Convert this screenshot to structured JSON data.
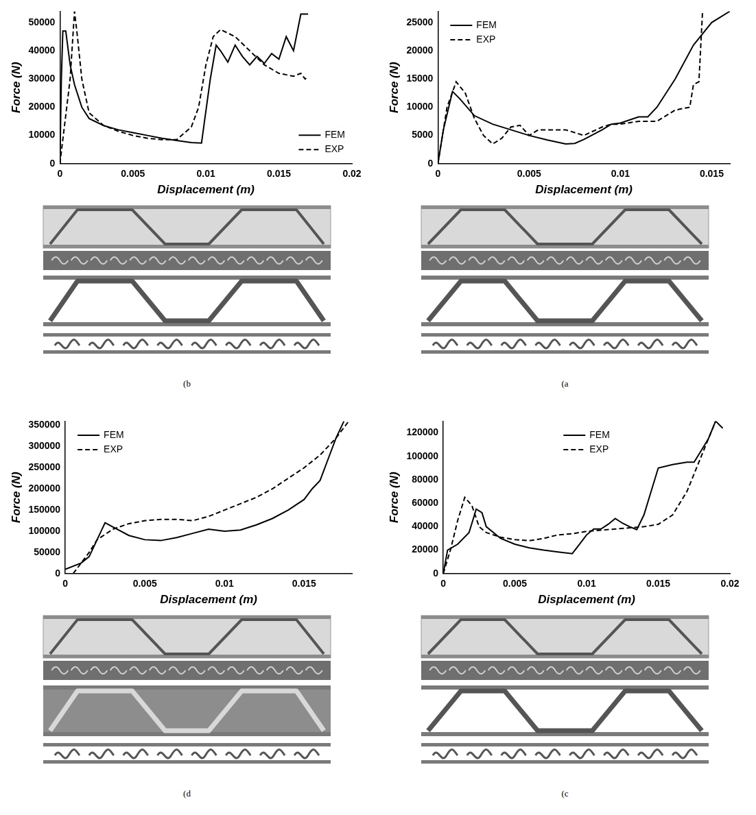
{
  "chart_data": [
    {
      "type": "line",
      "label": "(b",
      "x_label": "Displacement (m)",
      "y_label": "Force (N)",
      "xlim": [
        0,
        0.02
      ],
      "xticks": [
        0,
        0.005,
        0.01,
        0.015,
        0.02
      ],
      "ylim": [
        0,
        54000
      ],
      "yticks": [
        0,
        10000,
        20000,
        30000,
        40000,
        50000
      ],
      "grid": false,
      "legend": "lower right",
      "series": [
        {
          "name": "FEM",
          "color": "#000000",
          "line_style": "solid",
          "x": [
            0,
            0.0001,
            0.0002,
            0.0004,
            0.0007,
            0.001,
            0.0015,
            0.002,
            0.003,
            0.004,
            0.005,
            0.006,
            0.007,
            0.008,
            0.009,
            0.0097,
            0.0099,
            0.0103,
            0.0107,
            0.011,
            0.0115,
            0.012,
            0.0125,
            0.013,
            0.0135,
            0.014,
            0.0145,
            0.015,
            0.0155,
            0.016,
            0.0165,
            0.017
          ],
          "values": [
            0,
            30000,
            47000,
            47000,
            35000,
            28000,
            20000,
            16000,
            13500,
            12000,
            11000,
            10000,
            9000,
            8200,
            7500,
            7300,
            15000,
            30000,
            42000,
            40000,
            36000,
            42000,
            38000,
            35000,
            38000,
            35500,
            39000,
            37000,
            45000,
            40000,
            53000,
            53000
          ]
        },
        {
          "name": "EXP",
          "color": "#000000",
          "line_style": "dashed",
          "x": [
            0,
            0.0007,
            0.001,
            0.0012,
            0.0015,
            0.002,
            0.003,
            0.004,
            0.005,
            0.006,
            0.007,
            0.008,
            0.009,
            0.0095,
            0.01,
            0.0105,
            0.011,
            0.012,
            0.013,
            0.014,
            0.015,
            0.016,
            0.0165,
            0.0168,
            0.017
          ],
          "values": [
            0,
            30000,
            54000,
            45000,
            30000,
            18000,
            13500,
            11500,
            10000,
            9000,
            8500,
            8500,
            13000,
            20000,
            35000,
            45000,
            47500,
            45000,
            40000,
            35000,
            32000,
            31000,
            32000,
            30000,
            31000
          ]
        }
      ]
    },
    {
      "type": "line",
      "label": "(a",
      "x_label": "Displacement (m)",
      "y_label": "Force (N)",
      "xlim": [
        0,
        0.016
      ],
      "xticks": [
        0,
        0.005,
        0.01,
        0.015
      ],
      "ylim": [
        0,
        27000
      ],
      "yticks": [
        0,
        5000,
        10000,
        15000,
        20000,
        25000
      ],
      "grid": false,
      "legend": "upper left",
      "series": [
        {
          "name": "FEM",
          "color": "#000000",
          "line_style": "solid",
          "x": [
            0,
            0.0003,
            0.0008,
            0.0012,
            0.002,
            0.003,
            0.004,
            0.005,
            0.006,
            0.007,
            0.0075,
            0.008,
            0.009,
            0.0095,
            0.01,
            0.011,
            0.0115,
            0.012,
            0.013,
            0.014,
            0.015,
            0.016
          ],
          "values": [
            0,
            6000,
            12800,
            11500,
            8500,
            7000,
            6000,
            5000,
            4200,
            3500,
            3600,
            4300,
            6000,
            7000,
            7200,
            8300,
            8300,
            10000,
            15000,
            21000,
            25000,
            27000
          ]
        },
        {
          "name": "EXP",
          "color": "#000000",
          "line_style": "dashed",
          "x": [
            0,
            0.0005,
            0.001,
            0.0015,
            0.002,
            0.0025,
            0.003,
            0.0035,
            0.004,
            0.0045,
            0.005,
            0.0055,
            0.007,
            0.0075,
            0.008,
            0.009,
            0.0095,
            0.01,
            0.011,
            0.012,
            0.013,
            0.0138,
            0.014,
            0.0143,
            0.0145
          ],
          "values": [
            0,
            10000,
            14500,
            12500,
            8000,
            5000,
            3500,
            4500,
            6500,
            6800,
            5000,
            6000,
            6000,
            5500,
            5000,
            6500,
            7000,
            7000,
            7500,
            7500,
            9500,
            10000,
            14000,
            14500,
            27000
          ]
        }
      ]
    },
    {
      "type": "line",
      "label": "(d",
      "x_label": "Displacement (m)",
      "y_label": "Force (N)",
      "xlim": [
        0,
        0.018
      ],
      "xticks": [
        0,
        0.005,
        0.01,
        0.015
      ],
      "ylim": [
        0,
        360000
      ],
      "yticks": [
        0,
        50000,
        100000,
        150000,
        200000,
        250000,
        300000,
        350000
      ],
      "grid": false,
      "legend": "upper left",
      "series": [
        {
          "name": "FEM",
          "color": "#000000",
          "line_style": "solid",
          "x": [
            0,
            0.001,
            0.0015,
            0.002,
            0.0025,
            0.003,
            0.004,
            0.005,
            0.006,
            0.007,
            0.008,
            0.009,
            0.01,
            0.011,
            0.012,
            0.013,
            0.014,
            0.015,
            0.0155,
            0.016,
            0.0165,
            0.017,
            0.0175
          ],
          "values": [
            10000,
            25000,
            40000,
            80000,
            120000,
            110000,
            90000,
            80000,
            78000,
            85000,
            95000,
            105000,
            100000,
            103000,
            115000,
            130000,
            150000,
            175000,
            200000,
            220000,
            270000,
            320000,
            360000
          ]
        },
        {
          "name": "EXP",
          "color": "#000000",
          "line_style": "dashed",
          "x": [
            0.0005,
            0.0015,
            0.002,
            0.003,
            0.004,
            0.005,
            0.006,
            0.007,
            0.008,
            0.009,
            0.01,
            0.011,
            0.012,
            0.013,
            0.014,
            0.015,
            0.016,
            0.017,
            0.0178
          ],
          "values": [
            0,
            50000,
            80000,
            105000,
            118000,
            125000,
            128000,
            128000,
            125000,
            135000,
            150000,
            165000,
            180000,
            200000,
            225000,
            250000,
            280000,
            320000,
            360000
          ]
        }
      ]
    },
    {
      "type": "line",
      "label": "(c",
      "x_label": "Displacement (m)",
      "y_label": "Force (N)",
      "xlim": [
        0,
        0.02
      ],
      "xticks": [
        0,
        0.005,
        0.01,
        0.015,
        0.02
      ],
      "ylim": [
        0,
        130000
      ],
      "yticks": [
        0,
        20000,
        40000,
        60000,
        80000,
        100000,
        120000
      ],
      "grid": false,
      "legend": "upper center",
      "series": [
        {
          "name": "FEM",
          "color": "#000000",
          "line_style": "solid",
          "x": [
            0,
            0.0003,
            0.001,
            0.0018,
            0.0023,
            0.0027,
            0.003,
            0.004,
            0.005,
            0.006,
            0.007,
            0.008,
            0.009,
            0.0095,
            0.01,
            0.0105,
            0.011,
            0.0115,
            0.012,
            0.0125,
            0.013,
            0.0135,
            0.014,
            0.0145,
            0.015,
            0.016,
            0.017,
            0.0175,
            0.018,
            0.0185,
            0.019,
            0.0195
          ],
          "values": [
            0,
            20000,
            25000,
            35000,
            55000,
            52000,
            40000,
            30000,
            25000,
            22000,
            20000,
            18500,
            17000,
            25000,
            33000,
            38000,
            38000,
            42000,
            47000,
            43000,
            40000,
            37500,
            50000,
            70000,
            90000,
            93000,
            95000,
            95000,
            105000,
            115000,
            130000,
            124000
          ]
        },
        {
          "name": "EXP",
          "color": "#000000",
          "line_style": "dashed",
          "x": [
            0,
            0.0005,
            0.001,
            0.0015,
            0.002,
            0.0025,
            0.003,
            0.004,
            0.005,
            0.006,
            0.007,
            0.008,
            0.009,
            0.01,
            0.011,
            0.012,
            0.013,
            0.014,
            0.015,
            0.016,
            0.017,
            0.018,
            0.0185,
            0.019
          ],
          "values": [
            0,
            20000,
            45000,
            65000,
            58000,
            40000,
            35000,
            31000,
            29000,
            28000,
            30000,
            33000,
            34000,
            36000,
            37000,
            38000,
            39000,
            40000,
            42000,
            50000,
            70000,
            100000,
            115000,
            130000
          ]
        }
      ]
    }
  ]
}
